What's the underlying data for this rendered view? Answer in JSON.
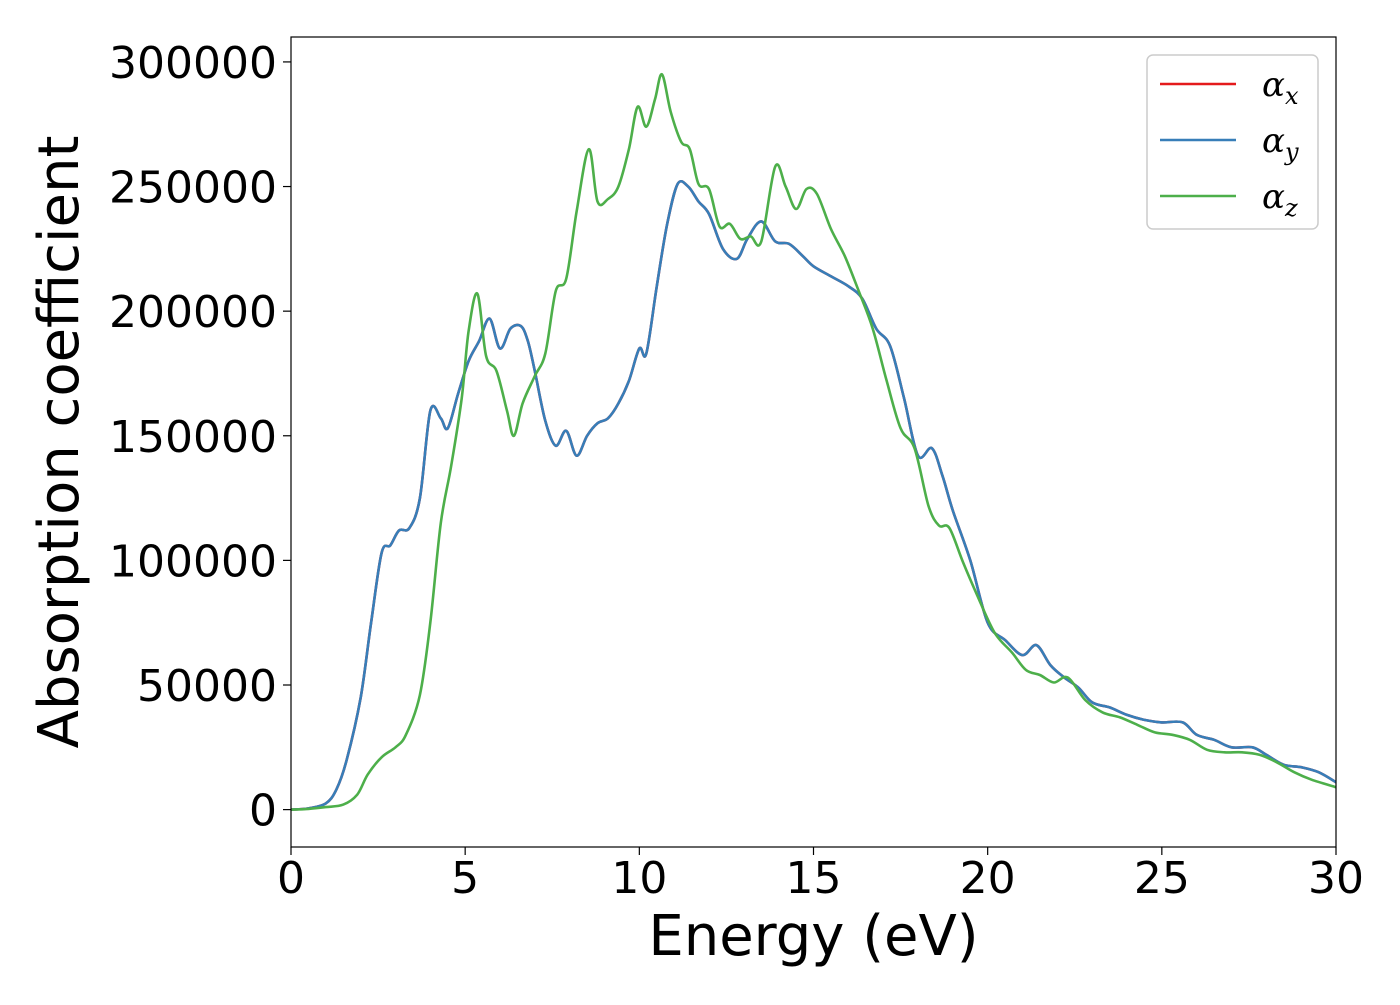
{
  "chart_data": {
    "type": "line",
    "title": "",
    "xlabel": "Energy (eV)",
    "ylabel": "Absorption coefficient",
    "xlim": [
      0,
      30
    ],
    "ylim": [
      -15000,
      310000
    ],
    "xticks": [
      0,
      5,
      10,
      15,
      20,
      25,
      30
    ],
    "yticks": [
      0,
      50000,
      100000,
      150000,
      200000,
      250000,
      300000
    ],
    "grid": false,
    "legend_position": "top-right",
    "series": [
      {
        "name": "α_x",
        "legend_main": "α",
        "legend_sub": "x",
        "color": "#e41a1c",
        "x": [
          0,
          0.5,
          1.0,
          1.3,
          1.6,
          2.0,
          2.3,
          2.6,
          2.85,
          3.1,
          3.4,
          3.7,
          4.0,
          4.3,
          4.5,
          4.8,
          5.1,
          5.4,
          5.7,
          6.0,
          6.3,
          6.6,
          6.8,
          7.0,
          7.3,
          7.6,
          7.9,
          8.2,
          8.5,
          8.8,
          9.1,
          9.4,
          9.7,
          10.0,
          10.2,
          10.5,
          10.8,
          11.1,
          11.4,
          11.7,
          12.0,
          12.4,
          12.8,
          13.1,
          13.5,
          13.9,
          14.3,
          14.7,
          15.0,
          15.5,
          16.0,
          16.4,
          16.8,
          17.2,
          17.6,
          18.0,
          18.4,
          18.7,
          19.0,
          19.5,
          20.0,
          20.5,
          21.0,
          21.4,
          21.8,
          22.2,
          22.6,
          23.0,
          23.5,
          24.0,
          24.5,
          25.0,
          25.6,
          26.0,
          26.5,
          27.0,
          27.6,
          28.0,
          28.5,
          29.0,
          29.5,
          30.0
        ],
        "y": [
          0,
          500,
          2500,
          8000,
          20000,
          45000,
          75000,
          103000,
          106000,
          112000,
          113000,
          125000,
          160000,
          157000,
          153000,
          167000,
          180000,
          188000,
          197000,
          185000,
          193000,
          194000,
          188000,
          176000,
          156000,
          146000,
          152000,
          142000,
          150000,
          155000,
          157000,
          163000,
          172000,
          185000,
          183000,
          210000,
          235000,
          251000,
          250000,
          244000,
          239000,
          225000,
          221000,
          229000,
          236000,
          228000,
          227000,
          222000,
          218000,
          214000,
          210000,
          205000,
          193000,
          186000,
          165000,
          142000,
          145000,
          134000,
          120000,
          100000,
          75000,
          68000,
          62000,
          66000,
          58000,
          53000,
          49000,
          43000,
          41000,
          38000,
          36000,
          35000,
          35000,
          30000,
          28000,
          25000,
          25000,
          22000,
          18000,
          17000,
          15000,
          11000
        ]
      },
      {
        "name": "α_y",
        "legend_main": "α",
        "legend_sub": "y",
        "color": "#377eb8",
        "x": [
          0,
          0.5,
          1.0,
          1.3,
          1.6,
          2.0,
          2.3,
          2.6,
          2.85,
          3.1,
          3.4,
          3.7,
          4.0,
          4.3,
          4.5,
          4.8,
          5.1,
          5.4,
          5.7,
          6.0,
          6.3,
          6.6,
          6.8,
          7.0,
          7.3,
          7.6,
          7.9,
          8.2,
          8.5,
          8.8,
          9.1,
          9.4,
          9.7,
          10.0,
          10.2,
          10.5,
          10.8,
          11.1,
          11.4,
          11.7,
          12.0,
          12.4,
          12.8,
          13.1,
          13.5,
          13.9,
          14.3,
          14.7,
          15.0,
          15.5,
          16.0,
          16.4,
          16.8,
          17.2,
          17.6,
          18.0,
          18.4,
          18.7,
          19.0,
          19.5,
          20.0,
          20.5,
          21.0,
          21.4,
          21.8,
          22.2,
          22.6,
          23.0,
          23.5,
          24.0,
          24.5,
          25.0,
          25.6,
          26.0,
          26.5,
          27.0,
          27.6,
          28.0,
          28.5,
          29.0,
          29.5,
          30.0
        ],
        "y": [
          0,
          500,
          2500,
          8000,
          20000,
          45000,
          75000,
          103000,
          106000,
          112000,
          113000,
          125000,
          160000,
          157000,
          153000,
          167000,
          180000,
          188000,
          197000,
          185000,
          193000,
          194000,
          188000,
          176000,
          156000,
          146000,
          152000,
          142000,
          150000,
          155000,
          157000,
          163000,
          172000,
          185000,
          183000,
          210000,
          235000,
          251000,
          250000,
          244000,
          239000,
          225000,
          221000,
          229000,
          236000,
          228000,
          227000,
          222000,
          218000,
          214000,
          210000,
          205000,
          193000,
          186000,
          165000,
          142000,
          145000,
          134000,
          120000,
          100000,
          75000,
          68000,
          62000,
          66000,
          58000,
          53000,
          49000,
          43000,
          41000,
          38000,
          36000,
          35000,
          35000,
          30000,
          28000,
          25000,
          25000,
          22000,
          18000,
          17000,
          15000,
          11000
        ]
      },
      {
        "name": "α_z",
        "legend_main": "α",
        "legend_sub": "z",
        "color": "#4daf4a",
        "x": [
          0,
          0.5,
          1.0,
          1.5,
          1.9,
          2.2,
          2.6,
          3.0,
          3.3,
          3.7,
          4.0,
          4.3,
          4.6,
          4.9,
          5.1,
          5.35,
          5.6,
          5.9,
          6.2,
          6.4,
          6.65,
          7.0,
          7.3,
          7.6,
          7.9,
          8.2,
          8.55,
          8.8,
          9.1,
          9.4,
          9.7,
          9.95,
          10.2,
          10.45,
          10.65,
          10.9,
          11.2,
          11.45,
          11.7,
          12.0,
          12.3,
          12.6,
          12.9,
          13.2,
          13.5,
          13.9,
          14.2,
          14.5,
          14.8,
          15.1,
          15.5,
          15.9,
          16.3,
          16.7,
          17.1,
          17.5,
          17.9,
          18.3,
          18.6,
          18.9,
          19.3,
          19.7,
          20.2,
          20.7,
          21.1,
          21.5,
          21.9,
          22.3,
          22.8,
          23.3,
          23.8,
          24.3,
          24.8,
          25.3,
          25.8,
          26.3,
          26.8,
          27.3,
          27.8,
          28.3,
          28.8,
          29.3,
          30.0
        ],
        "y": [
          0,
          300,
          1000,
          2000,
          6000,
          14000,
          21000,
          25000,
          30000,
          46000,
          75000,
          115000,
          138000,
          165000,
          192000,
          207000,
          182000,
          176000,
          160000,
          150000,
          163000,
          174000,
          183000,
          208000,
          213000,
          240000,
          265000,
          244000,
          245000,
          250000,
          265000,
          282000,
          274000,
          285000,
          295000,
          280000,
          268000,
          265000,
          251000,
          249000,
          234000,
          235000,
          229000,
          230000,
          228000,
          258000,
          250000,
          241000,
          249000,
          247000,
          233000,
          222000,
          208000,
          193000,
          172000,
          153000,
          145000,
          122000,
          114000,
          113000,
          99000,
          86000,
          71000,
          63000,
          56000,
          54000,
          51000,
          53000,
          44000,
          39000,
          37000,
          34000,
          31000,
          30000,
          28000,
          24000,
          23000,
          23000,
          22000,
          19000,
          15000,
          12000,
          9000
        ]
      }
    ]
  }
}
